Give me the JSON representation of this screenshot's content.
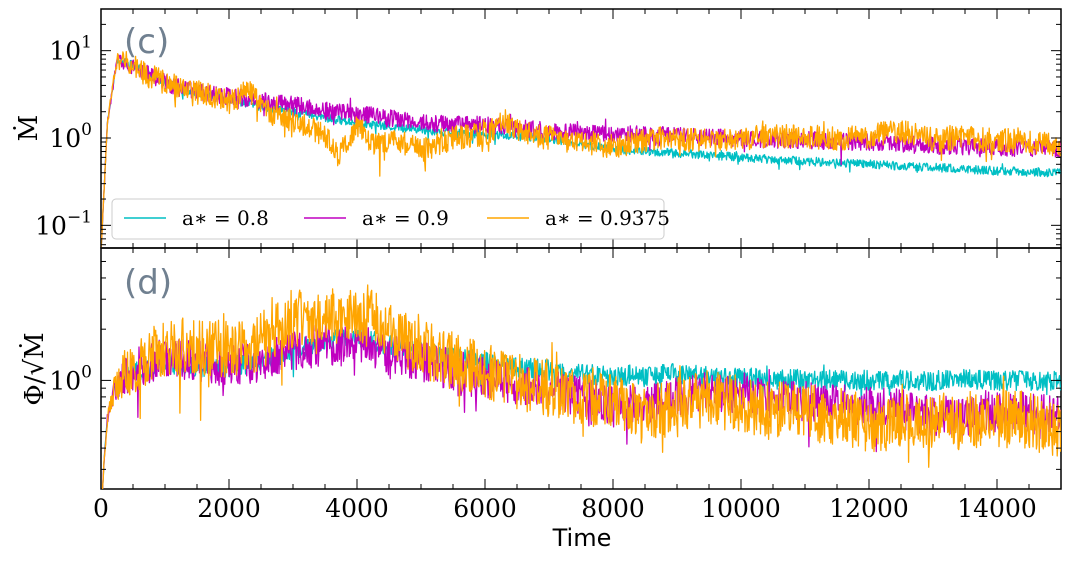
{
  "chart_data": [
    {
      "type": "line",
      "panel_label": "(c)",
      "ylabel": "Ṁ",
      "yscale": "log",
      "ylim": [
        0.055,
        30
      ],
      "xlim": [
        0,
        15000
      ],
      "y_tick_labels": [
        {
          "value": 10,
          "base": "10",
          "exp": "1"
        },
        {
          "value": 1,
          "base": "10",
          "exp": "0"
        },
        {
          "value": 0.1,
          "base": "10",
          "exp": "−1"
        }
      ],
      "legend": {
        "placement": "lower-left",
        "entries": [
          "a∗ = 0.8",
          "a∗ = 0.9",
          "a∗ = 0.9375"
        ]
      },
      "series": [
        {
          "name": "a∗ = 0.8",
          "color": "#00BFC4",
          "x": [
            0,
            100,
            250,
            500,
            800,
            1200,
            1600,
            2000,
            2500,
            3000,
            3500,
            4000,
            4500,
            5000,
            5500,
            6000,
            6500,
            7000,
            7500,
            8000,
            8500,
            9000,
            9500,
            10000,
            10500,
            11000,
            11500,
            12000,
            12500,
            13000,
            13500,
            14000,
            14500,
            15000
          ],
          "y": [
            0.05,
            1.5,
            7.8,
            6.8,
            5.0,
            3.8,
            3.2,
            2.8,
            2.3,
            2.0,
            1.7,
            1.5,
            1.35,
            1.25,
            1.15,
            1.1,
            1.05,
            1.0,
            0.85,
            0.75,
            0.7,
            0.67,
            0.64,
            0.6,
            0.57,
            0.54,
            0.52,
            0.5,
            0.48,
            0.46,
            0.44,
            0.42,
            0.41,
            0.4
          ],
          "noise": 0.05
        },
        {
          "name": "a∗ = 0.9",
          "color": "#C000C0",
          "x": [
            0,
            100,
            250,
            500,
            800,
            1200,
            1600,
            2000,
            2500,
            3000,
            3500,
            4000,
            4500,
            5000,
            5500,
            6000,
            6500,
            7000,
            7500,
            8000,
            8500,
            9000,
            9500,
            10000,
            10500,
            11000,
            11500,
            12000,
            12500,
            13000,
            13500,
            14000,
            14500,
            15000
          ],
          "y": [
            0.05,
            1.5,
            7.8,
            6.8,
            5.0,
            3.8,
            3.3,
            3.0,
            2.7,
            2.4,
            2.1,
            1.9,
            1.7,
            1.5,
            1.45,
            1.4,
            1.3,
            1.2,
            1.15,
            1.1,
            1.1,
            1.05,
            1.0,
            1.0,
            0.95,
            0.95,
            0.9,
            0.9,
            0.85,
            0.82,
            0.8,
            0.78,
            0.77,
            0.75
          ],
          "noise": 0.1
        },
        {
          "name": "a∗ = 0.9375",
          "color": "#FFA500",
          "x": [
            0,
            100,
            250,
            500,
            800,
            1200,
            1600,
            2000,
            2300,
            2600,
            3000,
            3500,
            3700,
            4000,
            4300,
            4600,
            5000,
            5500,
            6000,
            6300,
            6500,
            7000,
            7500,
            8000,
            8500,
            9000,
            9500,
            10000,
            10500,
            11000,
            11500,
            12000,
            12500,
            13000,
            13500,
            14000,
            14500,
            15000
          ],
          "y": [
            0.05,
            1.5,
            7.8,
            6.8,
            5.0,
            3.8,
            3.2,
            2.6,
            3.5,
            2.0,
            1.6,
            1.1,
            0.6,
            1.4,
            0.8,
            1.0,
            0.7,
            1.0,
            1.1,
            1.6,
            1.2,
            1.0,
            0.9,
            0.8,
            0.95,
            1.0,
            0.95,
            1.0,
            1.05,
            1.05,
            1.0,
            1.05,
            1.2,
            0.95,
            1.0,
            0.95,
            0.9,
            0.85
          ],
          "noise": 0.14
        }
      ]
    },
    {
      "type": "line",
      "panel_label": "(d)",
      "ylabel": "Φ/√Ṁ",
      "yscale": "log",
      "ylim": [
        0.23,
        6
      ],
      "xlim": [
        0,
        15000
      ],
      "xlabel": "Time",
      "x_ticks": [
        0,
        2000,
        4000,
        6000,
        8000,
        10000,
        12000,
        14000
      ],
      "x_tick_labels": [
        "0",
        "2000",
        "4000",
        "6000",
        "8000",
        "10000",
        "12000",
        "14000"
      ],
      "y_tick_labels": [
        {
          "value": 1,
          "base": "10",
          "exp": "0"
        }
      ],
      "series": [
        {
          "name": "a∗ = 0.8",
          "color": "#00BFC4",
          "x": [
            0,
            50,
            100,
            200,
            300,
            500,
            800,
            1000,
            1500,
            2000,
            2500,
            3000,
            3500,
            4000,
            4500,
            5000,
            5500,
            6000,
            6500,
            7000,
            7500,
            8000,
            8500,
            9000,
            9500,
            10000,
            10500,
            11000,
            11500,
            12000,
            12500,
            13000,
            13500,
            14000,
            14500,
            15000
          ],
          "y": [
            0.15,
            0.35,
            0.6,
            0.85,
            1.0,
            1.1,
            1.2,
            1.25,
            1.2,
            1.2,
            1.3,
            1.5,
            1.7,
            1.8,
            1.6,
            1.45,
            1.35,
            1.3,
            1.2,
            1.15,
            1.1,
            1.05,
            1.05,
            1.1,
            1.05,
            1.05,
            1.0,
            1.02,
            1.0,
            1.0,
            1.0,
            1.0,
            1.02,
            1.0,
            1.0,
            1.0
          ],
          "noise": 0.06
        },
        {
          "name": "a∗ = 0.9",
          "color": "#C000C0",
          "x": [
            0,
            50,
            100,
            200,
            300,
            500,
            800,
            1000,
            1500,
            2000,
            2500,
            3000,
            3500,
            4000,
            4500,
            5000,
            5500,
            6000,
            6500,
            7000,
            7500,
            8000,
            8500,
            9000,
            9500,
            10000,
            10500,
            11000,
            11500,
            12000,
            12500,
            13000,
            13500,
            14000,
            14500,
            15000
          ],
          "y": [
            0.15,
            0.35,
            0.6,
            0.85,
            1.0,
            1.15,
            1.3,
            1.35,
            1.3,
            1.2,
            1.3,
            1.5,
            1.6,
            1.7,
            1.4,
            1.3,
            1.15,
            1.05,
            0.95,
            0.9,
            0.8,
            0.7,
            0.72,
            0.8,
            0.82,
            0.85,
            0.78,
            0.75,
            0.72,
            0.7,
            0.68,
            0.62,
            0.62,
            0.66,
            0.65,
            0.62
          ],
          "noise": 0.12
        },
        {
          "name": "a∗ = 0.9375",
          "color": "#FFA500",
          "x": [
            0,
            50,
            100,
            200,
            300,
            500,
            800,
            1000,
            1500,
            2000,
            2500,
            3000,
            3500,
            4000,
            4200,
            4500,
            5000,
            5500,
            6000,
            6500,
            7000,
            7500,
            8000,
            8500,
            9000,
            9500,
            10000,
            10500,
            11000,
            11500,
            12000,
            12500,
            13000,
            13500,
            14000,
            14500,
            15000
          ],
          "y": [
            0.15,
            0.35,
            0.6,
            0.85,
            1.0,
            1.2,
            1.4,
            1.55,
            1.6,
            1.5,
            1.7,
            2.3,
            2.4,
            2.3,
            2.6,
            1.9,
            1.55,
            1.3,
            1.15,
            1.0,
            0.9,
            0.8,
            0.75,
            0.62,
            0.72,
            0.78,
            0.72,
            0.68,
            0.65,
            0.62,
            0.55,
            0.55,
            0.6,
            0.58,
            0.6,
            0.58,
            0.5
          ],
          "noise": 0.17
        }
      ]
    }
  ]
}
